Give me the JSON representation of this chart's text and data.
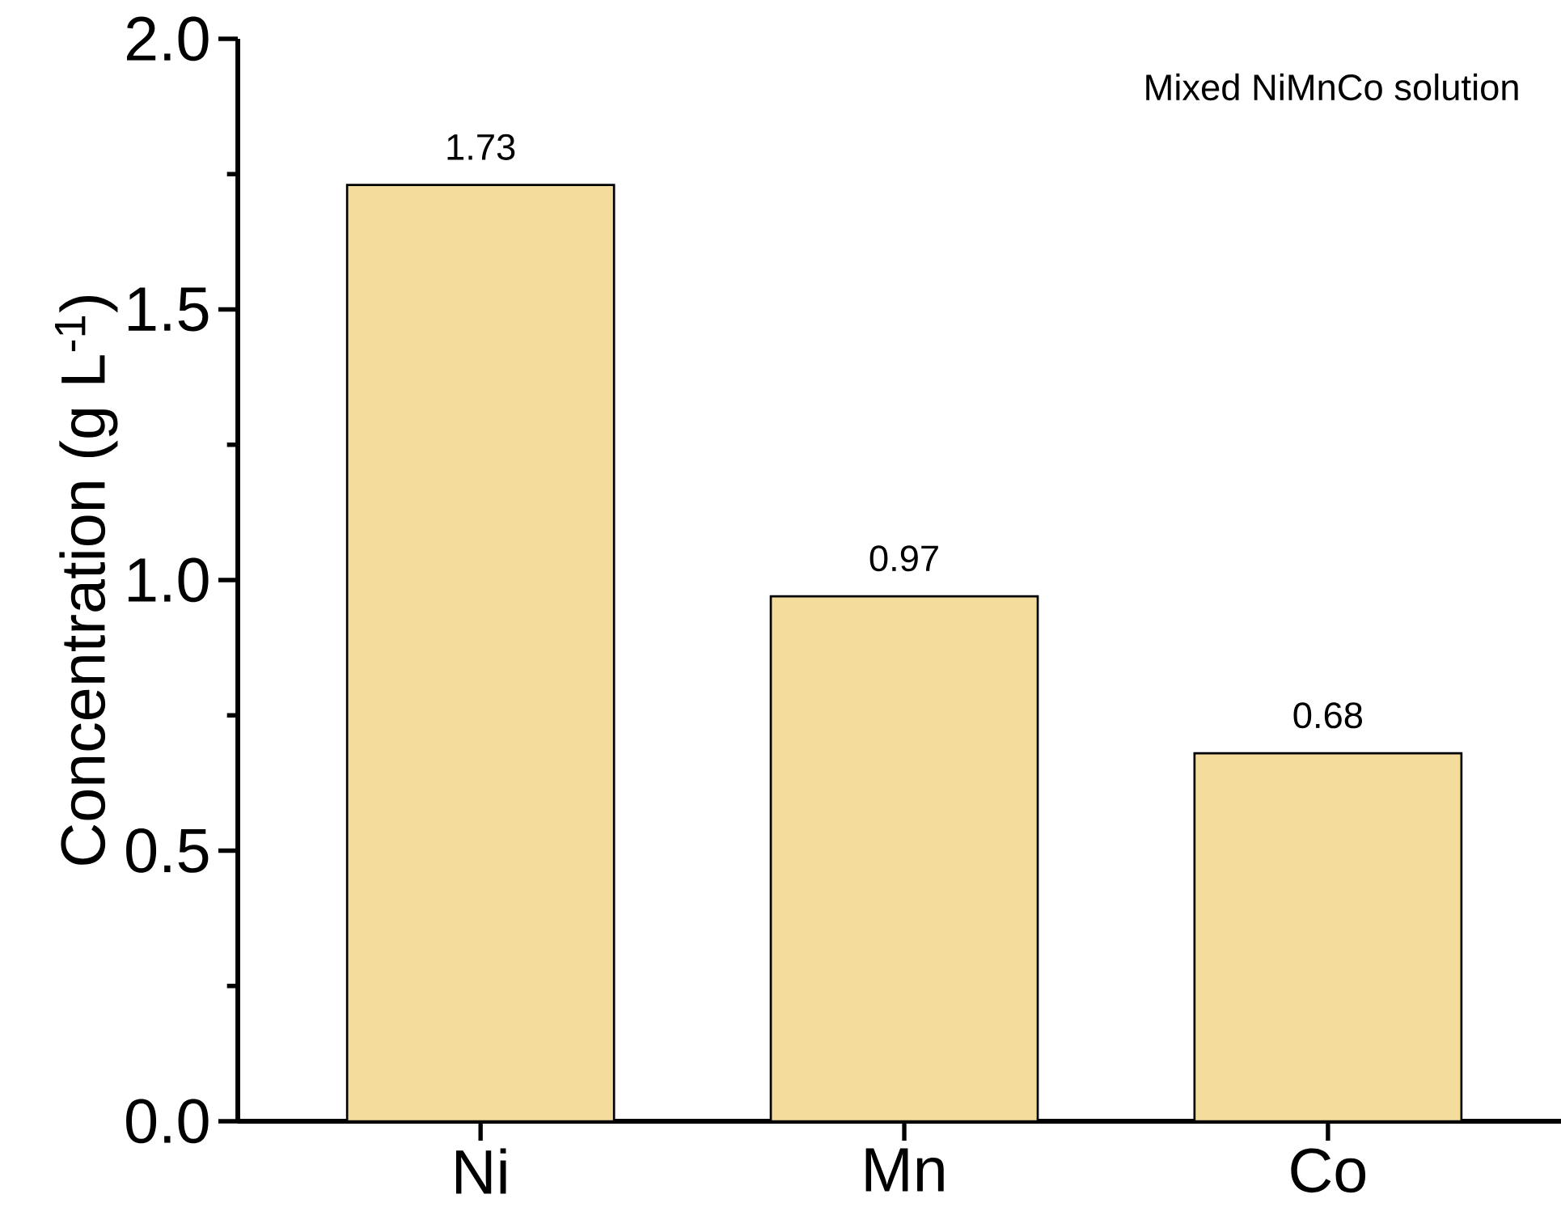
{
  "chart_data": {
    "type": "bar",
    "ylabel": "Concentration (g L$^{-1}$)",
    "categories": [
      "Ni",
      "Mn",
      "Co"
    ],
    "values": [
      1.73,
      0.97,
      0.68
    ],
    "color": "#f3dc9c",
    "ylim": [
      0,
      2.0
    ],
    "yticks": [
      {
        "value": 0,
        "label": "0.0"
      },
      {
        "value": 0.5,
        "label": "0.5"
      },
      {
        "value": 1,
        "label": "1.0"
      },
      {
        "value": 1.5,
        "label": "1.5"
      },
      {
        "value": 2,
        "label": "2.0"
      }
    ],
    "data_labels": true,
    "annotations": [
      "Mixed NiMnCo solution"
    ]
  }
}
